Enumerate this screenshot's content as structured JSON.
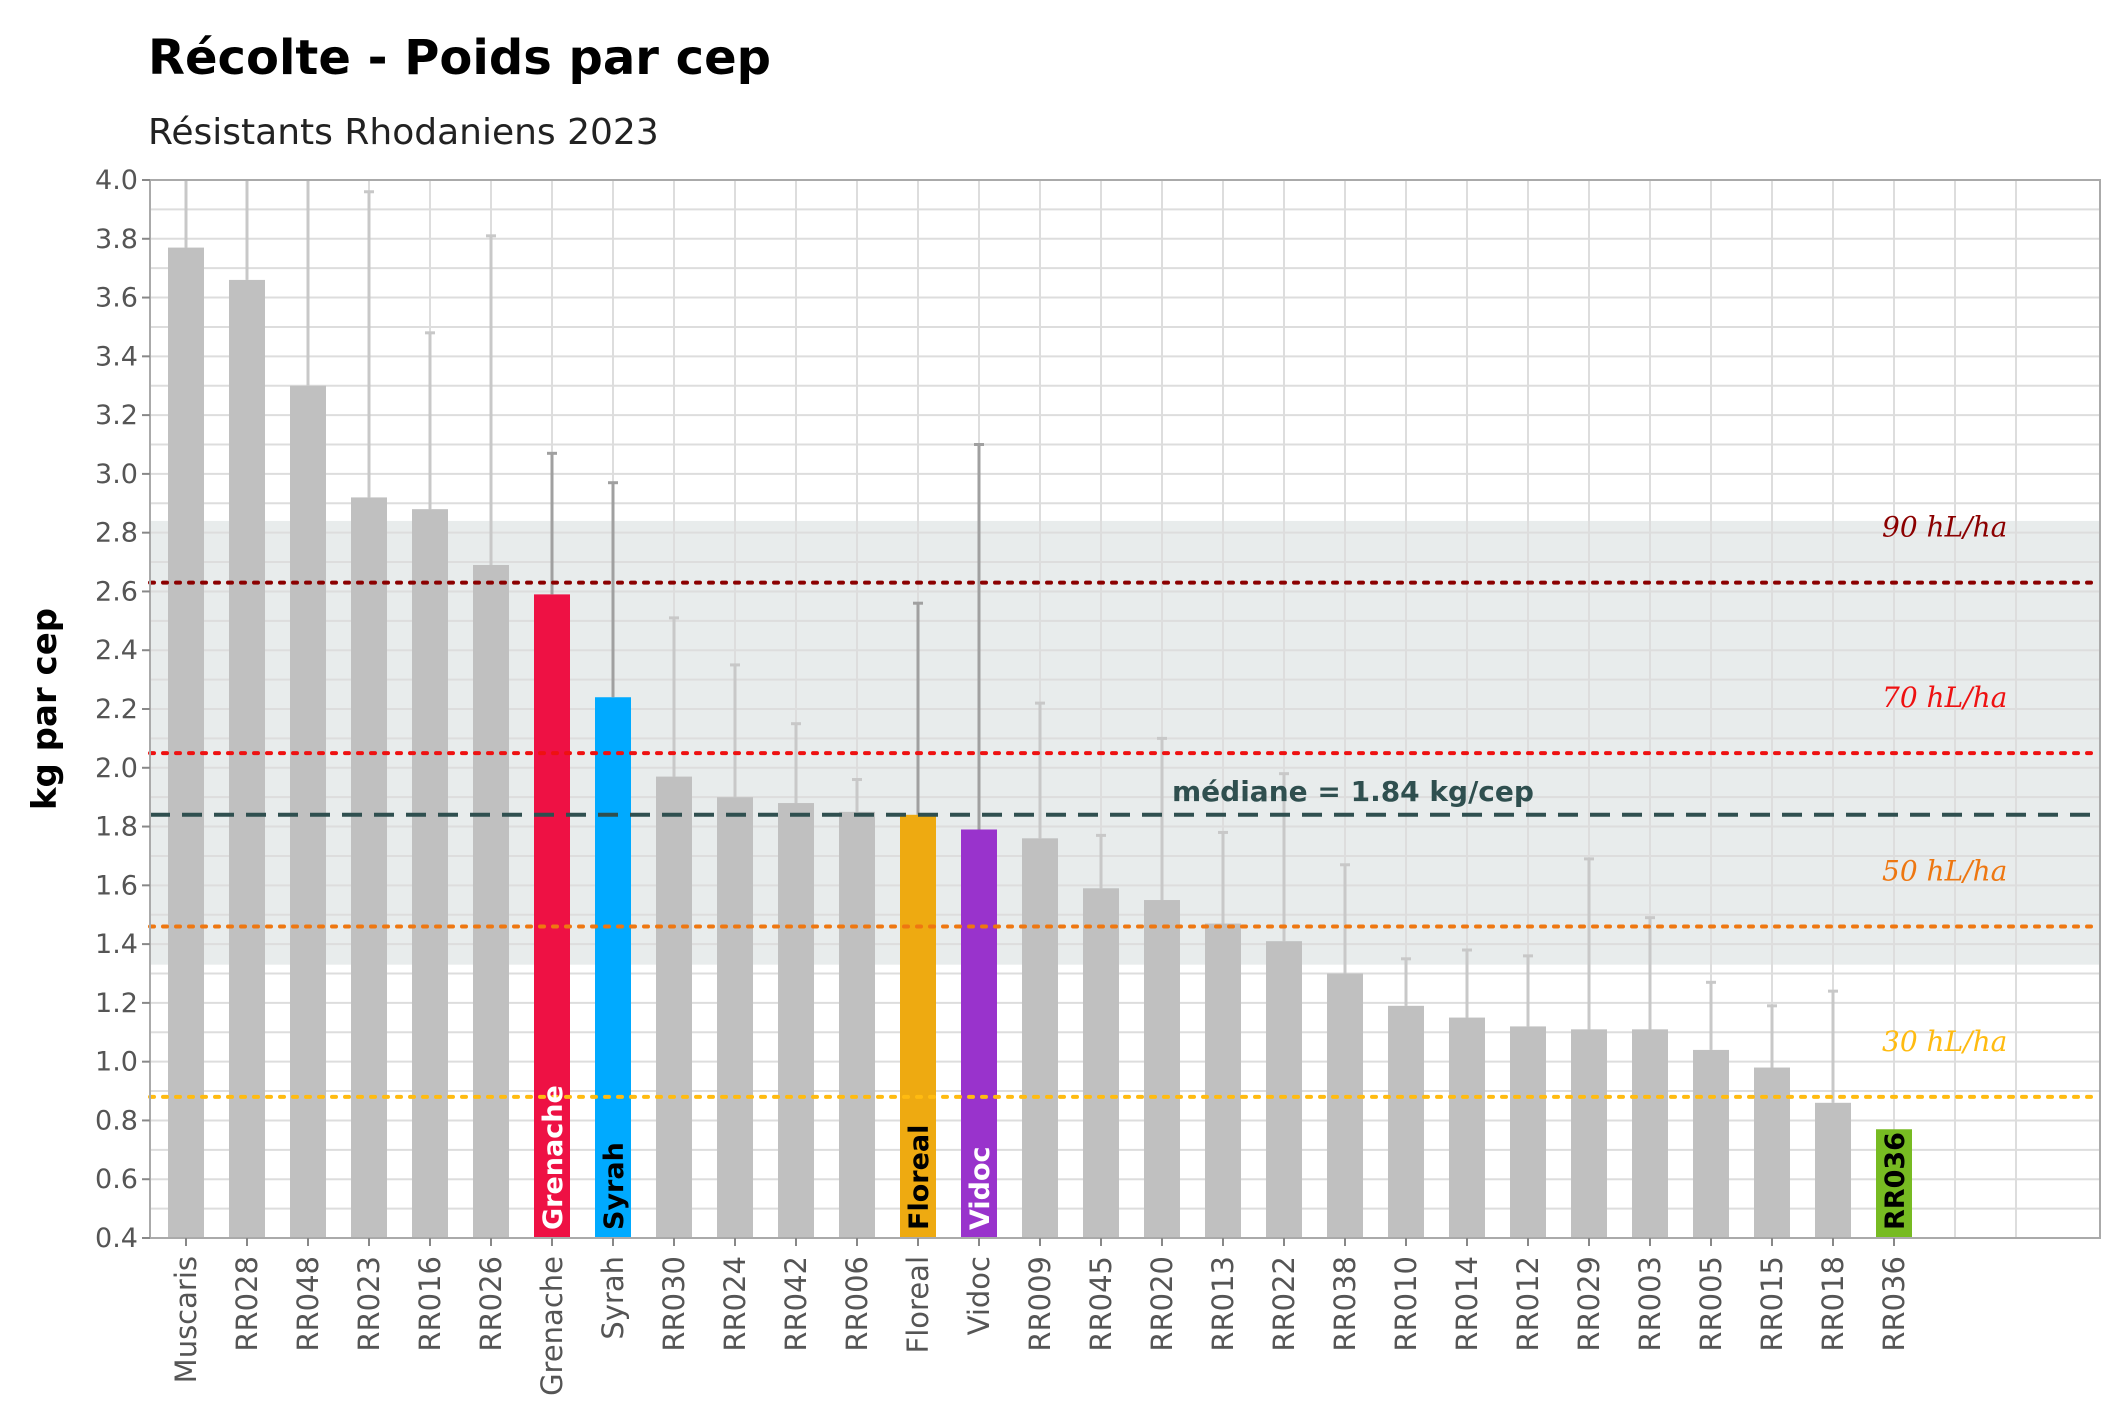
{
  "title": "Récolte - Poids par cep",
  "subtitle": "Résistants Rhodaniens 2023",
  "chart_data": {
    "type": "bar",
    "title": "Récolte - Poids par cep",
    "subtitle": "Résistants Rhodaniens 2023",
    "xlabel": "",
    "ylabel": "kg par cep",
    "ylim": [
      0.4,
      4.0
    ],
    "yticks": [
      "0.4",
      "0.6",
      "0.8",
      "1.0",
      "1.2",
      "1.4",
      "1.6",
      "1.8",
      "2.0",
      "2.2",
      "2.4",
      "2.6",
      "2.8",
      "3.0",
      "3.2",
      "3.4",
      "3.6",
      "3.8",
      "4.0"
    ],
    "grid": true,
    "categories": [
      "Muscaris",
      "RR028",
      "RR048",
      "RR023",
      "RR016",
      "RR026",
      "Grenache",
      "Syrah",
      "RR030",
      "RR024",
      "RR042",
      "RR006",
      "Floreal",
      "Vidoc",
      "RR009",
      "RR045",
      "RR020",
      "RR013",
      "RR022",
      "RR038",
      "RR010",
      "RR014",
      "RR012",
      "RR029",
      "RR003",
      "RR005",
      "RR015",
      "RR018",
      "RR036"
    ],
    "values": [
      3.77,
      3.66,
      3.3,
      2.92,
      2.88,
      2.69,
      2.59,
      2.24,
      1.97,
      1.9,
      1.88,
      1.85,
      1.84,
      1.79,
      1.76,
      1.59,
      1.55,
      1.47,
      1.41,
      1.3,
      1.19,
      1.15,
      1.12,
      1.11,
      1.11,
      1.04,
      0.98,
      0.86,
      0.77
    ],
    "error_upper": [
      4.0,
      4.0,
      4.0,
      3.96,
      3.48,
      3.81,
      3.07,
      2.97,
      2.51,
      2.35,
      2.15,
      1.96,
      2.56,
      3.1,
      2.22,
      1.77,
      2.1,
      1.78,
      1.98,
      1.67,
      1.35,
      1.38,
      1.36,
      1.69,
      1.49,
      1.27,
      1.19,
      1.24,
      null
    ],
    "highlights": [
      {
        "category": "Grenache",
        "label": "Grenache",
        "color": "#ee1144",
        "text_color": "#ffffff"
      },
      {
        "category": "Syrah",
        "label": "Syrah",
        "color": "#00aaff",
        "text_color": "#000000"
      },
      {
        "category": "Floreal",
        "label": "Floreal",
        "color": "#eeaa11",
        "text_color": "#000000"
      },
      {
        "category": "Vidoc",
        "label": "Vidoc",
        "color": "#9933cc",
        "text_color": "#ffffff"
      },
      {
        "category": "RR036",
        "label": "RR036",
        "color": "#77bb22",
        "text_color": "#000000"
      }
    ],
    "default_bar_color": "#c0c0c0",
    "band": {
      "ymin": 1.33,
      "ymax": 2.84,
      "color": "#e8ecec"
    },
    "reference_lines": [
      {
        "y": 2.63,
        "label": "90 hL/ha",
        "color": "#8b0000",
        "style": "dotted"
      },
      {
        "y": 2.05,
        "label": "70 hL/ha",
        "color": "#ee1111",
        "style": "dotted"
      },
      {
        "y": 1.46,
        "label": "50 hL/ha",
        "color": "#ee7711",
        "style": "dotted"
      },
      {
        "y": 0.88,
        "label": "30 hL/ha",
        "color": "#ffbb11",
        "style": "dotted"
      }
    ],
    "median": {
      "y": 1.84,
      "label": "médiane = 1.84 kg/cep",
      "color": "#2f4f4f",
      "style": "dashed"
    }
  }
}
